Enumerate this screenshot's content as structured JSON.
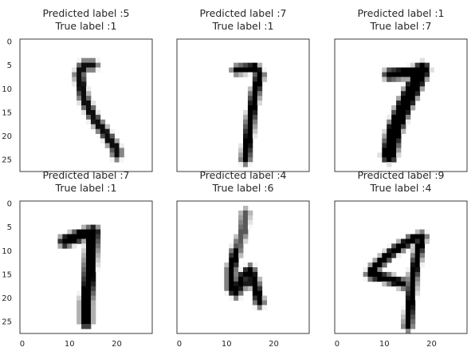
{
  "chart_data": {
    "type": "heatmap",
    "layout": "2x3 grid of 28x28 grayscale digit images",
    "colormap": "binary",
    "grid": false,
    "xticks": [
      0,
      10,
      20
    ],
    "yticks": [
      0,
      5,
      10,
      15,
      20,
      25
    ],
    "xlim": [
      -0.5,
      27.5
    ],
    "ylim": [
      27.5,
      -0.5
    ],
    "panels": [
      {
        "title_line1": "Predicted label :5",
        "title_line2": "True label :1",
        "predicted": 5,
        "true": 1,
        "strokes": [
          {
            "points": [
              [
                15,
                5
              ],
              [
                13,
                5
              ],
              [
                12,
                7
              ],
              [
                13,
                12
              ],
              [
                15,
                16
              ],
              [
                18,
                20
              ],
              [
                20,
                23
              ],
              [
                20,
                24
              ]
            ],
            "weight": 0.95,
            "width": 1.0
          }
        ]
      },
      {
        "title_line1": "Predicted label :7",
        "title_line2": "True label :1",
        "predicted": 7,
        "true": 1,
        "strokes": [
          {
            "points": [
              [
                12,
                6
              ],
              [
                16,
                5.5
              ],
              [
                17,
                7
              ]
            ],
            "weight": 1.0,
            "width": 0.9
          },
          {
            "points": [
              [
                17,
                7
              ],
              [
                16,
                11
              ],
              [
                15,
                17
              ],
              [
                14.5,
                21
              ],
              [
                14,
                25
              ]
            ],
            "weight": 1.0,
            "width": 1.0
          }
        ]
      },
      {
        "title_line1": "Predicted label :1",
        "title_line2": "True label :7",
        "predicted": 1,
        "true": 7,
        "strokes": [
          {
            "points": [
              [
                11,
                7
              ],
              [
                16,
                6.5
              ],
              [
                18,
                6
              ]
            ],
            "weight": 1.0,
            "width": 1.3
          },
          {
            "points": [
              [
                18,
                6
              ],
              [
                16,
                10
              ],
              [
                14,
                14
              ],
              [
                12,
                19
              ],
              [
                11,
                24
              ]
            ],
            "weight": 1.0,
            "width": 2.2
          }
        ]
      },
      {
        "title_line1": "Predicted label :7",
        "title_line2": "True label :1",
        "predicted": 7,
        "true": 1,
        "strokes": [
          {
            "points": [
              [
                9,
                8
              ],
              [
                13,
                6.5
              ],
              [
                15,
                6
              ]
            ],
            "weight": 1.0,
            "width": 1.5
          },
          {
            "points": [
              [
                15,
                6
              ],
              [
                14.5,
                11
              ],
              [
                14,
                17
              ],
              [
                13.5,
                21
              ],
              [
                13.5,
                25
              ]
            ],
            "weight": 1.0,
            "width": 1.6
          }
        ]
      },
      {
        "title_line1": "Predicted label :4",
        "title_line2": "True label :6",
        "predicted": 4,
        "true": 6,
        "strokes": [
          {
            "points": [
              [
                14,
                2
              ],
              [
                13.5,
                6
              ],
              [
                12,
                10
              ]
            ],
            "weight": 0.65,
            "width": 0.9
          },
          {
            "points": [
              [
                12,
                10
              ],
              [
                11,
                14
              ],
              [
                11,
                18
              ],
              [
                12,
                19
              ],
              [
                13,
                16
              ],
              [
                15,
                14
              ],
              [
                16,
                17
              ],
              [
                17,
                21
              ]
            ],
            "weight": 1.0,
            "width": 1.0
          },
          {
            "points": [
              [
                14,
                17
              ],
              [
                16,
                16.5
              ]
            ],
            "weight": 0.9,
            "width": 0.9
          }
        ]
      },
      {
        "title_line1": "Predicted label :9",
        "title_line2": "True label :4",
        "predicted": 9,
        "true": 4,
        "strokes": [
          {
            "points": [
              [
                18,
                7
              ],
              [
                16,
                7.5
              ],
              [
                12,
                10
              ],
              [
                8,
                13.5
              ],
              [
                7,
                15
              ],
              [
                11,
                16
              ],
              [
                14,
                17
              ]
            ],
            "weight": 1.0,
            "width": 1.0
          },
          {
            "points": [
              [
                18,
                7
              ],
              [
                17,
                11
              ],
              [
                16,
                16
              ],
              [
                15.5,
                21
              ],
              [
                15,
                26
              ]
            ],
            "weight": 1.0,
            "width": 0.95
          }
        ]
      }
    ]
  }
}
